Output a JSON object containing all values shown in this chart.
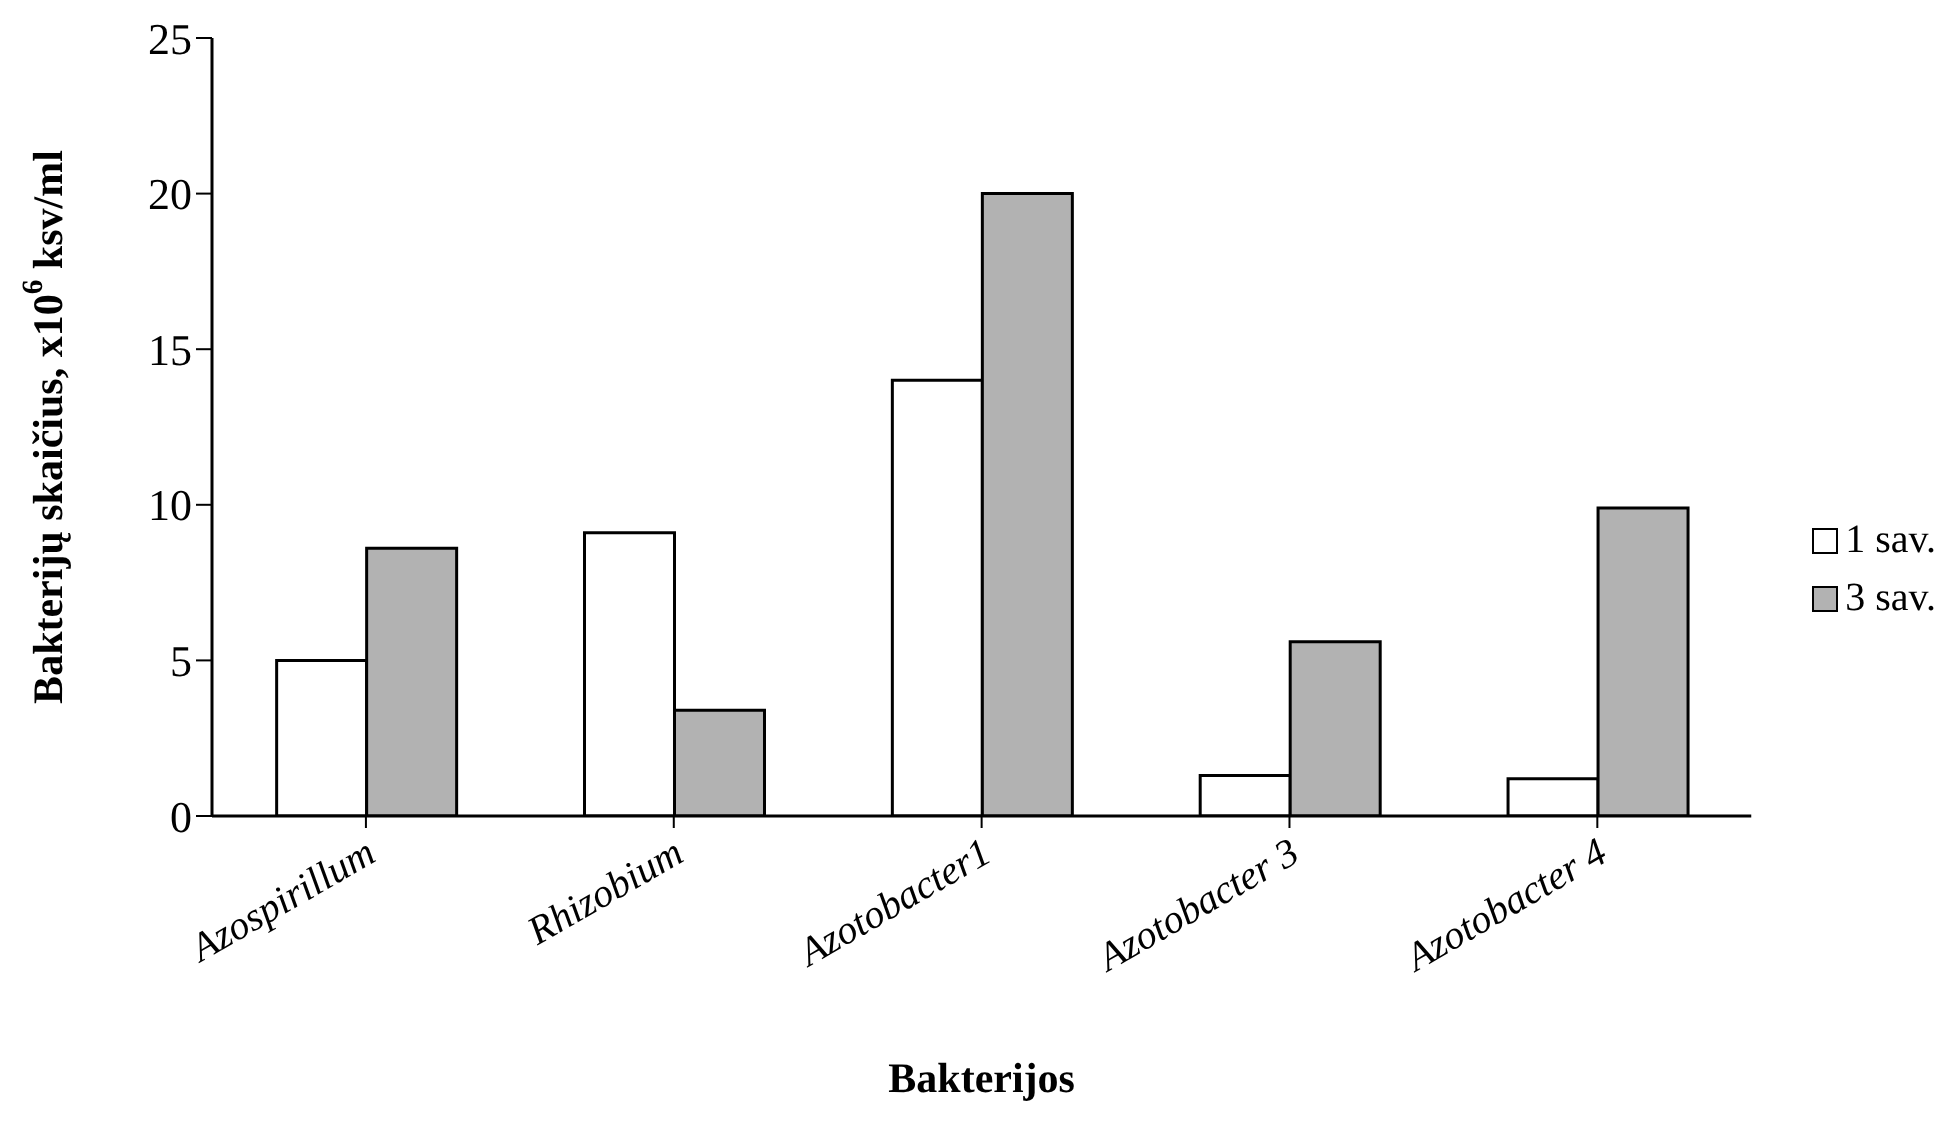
{
  "chart_data": {
    "type": "bar",
    "xlabel": "Bakterijos",
    "ylabel": "Bakterijų skaičius, x10$^{6}$ ksv/ml",
    "categories": [
      "Azospirillum",
      "Rhizobium",
      "Azotobacter1",
      "Azotobacter 3",
      "Azotobacter 4"
    ],
    "series": [
      {
        "name": "1 sav.",
        "color": "#ffffff",
        "values": [
          5.0,
          9.1,
          14.0,
          1.3,
          1.2
        ]
      },
      {
        "name": "3 sav.",
        "color": "#b2b2b2",
        "values": [
          8.6,
          3.4,
          20.0,
          5.6,
          9.9
        ]
      }
    ],
    "ylim": [
      0,
      25
    ],
    "yticks": [
      0,
      5,
      10,
      15,
      20,
      25
    ],
    "grid": false,
    "legend": "right"
  }
}
